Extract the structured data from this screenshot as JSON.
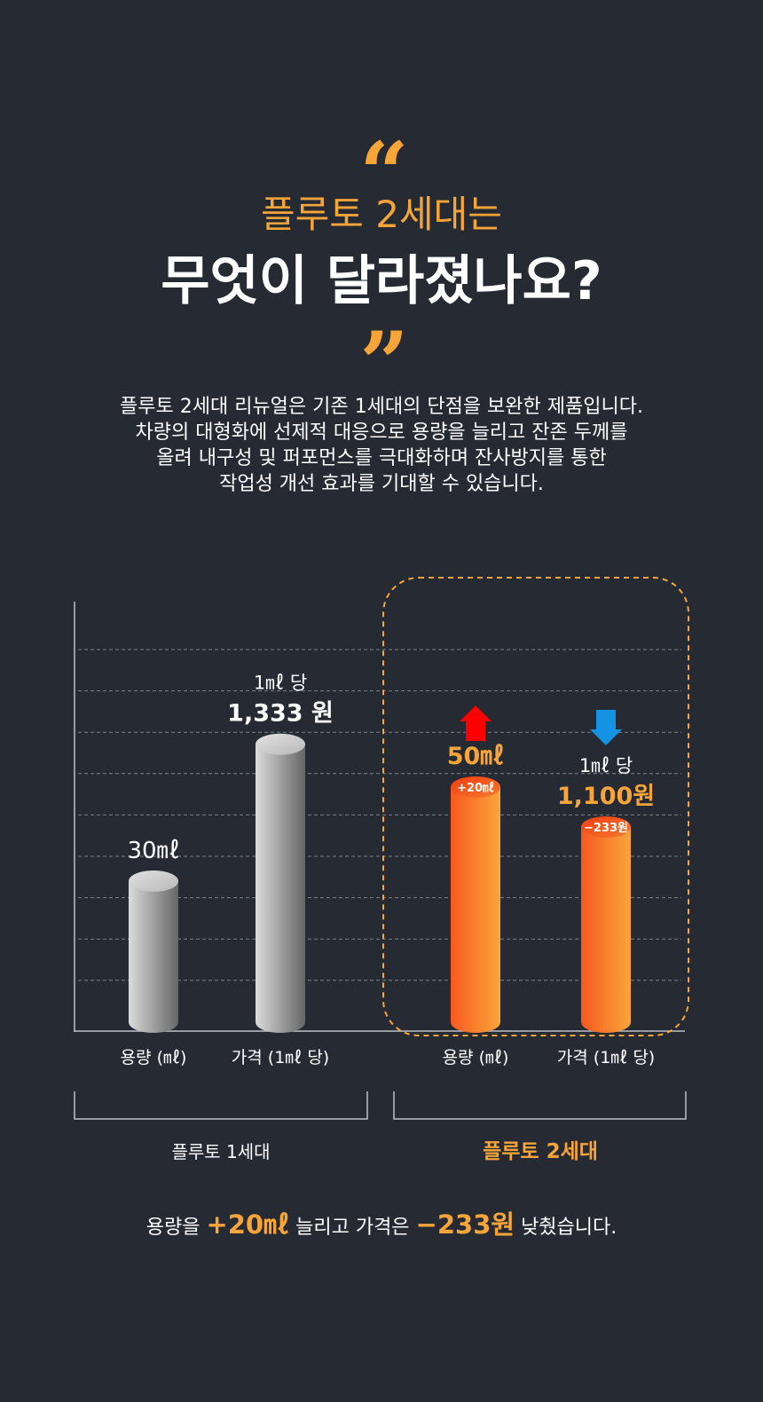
{
  "header": {
    "open_quote": "“",
    "close_quote": "”",
    "title_line1": "플루토 2세대는",
    "title_line2": "무엇이 달라졌나요?"
  },
  "description": [
    "플루토 2세대 리뉴얼은 기존 1세대의 단점을 보완한 제품입니다.",
    "차량의 대형화에 선제적 대응으로 용량을 늘리고 잔존 두께를",
    "올려 내구성 및 퍼포먼스를 극대화하며 잔사방지를 통한",
    "작업성 개선 효과를 기대할 수 있습니다."
  ],
  "colors": {
    "background": "#262a33",
    "accent": "#f7a539",
    "gen2_bar_start": "#f6591f",
    "gen2_bar_end": "#f9a53b",
    "gen1_bar_light": "#d0d0d0",
    "gen1_bar_dark": "#6a6a6a",
    "up_arrow": "#ff0000",
    "down_arrow": "#1493e5"
  },
  "chart_data": {
    "type": "bar",
    "categories": [
      "용량 (㎖)",
      "가격 (1㎖ 당)",
      "용량 (㎖)",
      "가격 (1㎖ 당)"
    ],
    "groups": [
      {
        "name": "플루토 1세대",
        "categories": [
          "용량 (㎖)",
          "가격 (1㎖ 당)"
        ]
      },
      {
        "name": "플루토 2세대",
        "categories": [
          "용량 (㎖)",
          "가격 (1㎖ 당)"
        ],
        "highlighted": true
      }
    ],
    "values": [
      30,
      1333,
      50,
      1100
    ],
    "value_unit": [
      "㎖",
      "원 / 1㎖",
      "㎖",
      "원 / 1㎖"
    ],
    "bar_style": [
      "gray-cylinder",
      "gray-cylinder",
      "orange-cylinder",
      "orange-cylinder"
    ],
    "labels": [
      {
        "main": "30㎖",
        "sub": ""
      },
      {
        "main": "1,333 원",
        "sub": "1㎖ 당"
      },
      {
        "main": "50㎖",
        "sub": ""
      },
      {
        "main": "1,100원",
        "sub": "1㎖ 당"
      }
    ],
    "bar_badges": [
      "",
      "",
      "+20㎖",
      "−233원"
    ],
    "change_arrows": [
      "",
      "",
      "up",
      "down"
    ],
    "grid": true,
    "y_axis_ticks_shown": false
  },
  "summary": {
    "prefix": "용량을",
    "capacity_change": "+20㎖",
    "middle": "늘리고 가격은",
    "price_change": "−233원",
    "suffix": "낮췄습니다."
  }
}
